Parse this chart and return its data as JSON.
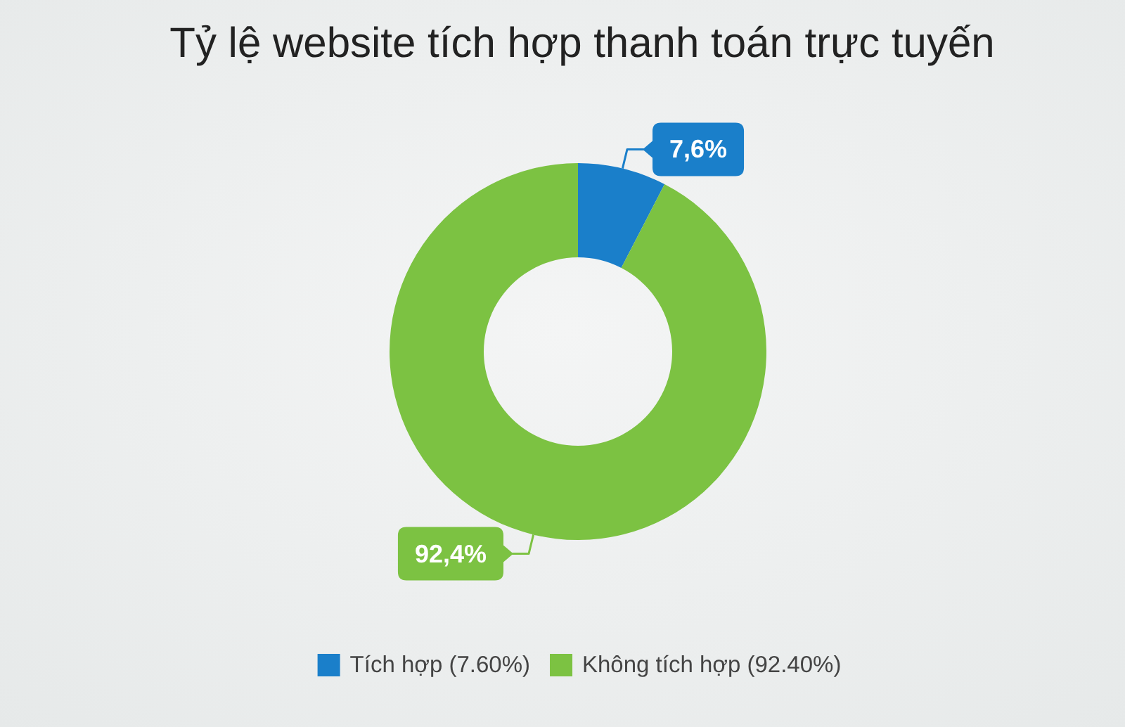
{
  "chart_data": {
    "type": "donut",
    "title": "Tỷ lệ website tích hợp thanh toán trực tuyến",
    "categories": [
      "Tích hợp (7.60%)",
      "Không tích hợp (92.40%)"
    ],
    "values": [
      7.6,
      92.4
    ],
    "colors": [
      "#1a7fca",
      "#7cc242"
    ],
    "value_labels": [
      "7,6%",
      "92,4%"
    ],
    "legend": "bottom"
  }
}
